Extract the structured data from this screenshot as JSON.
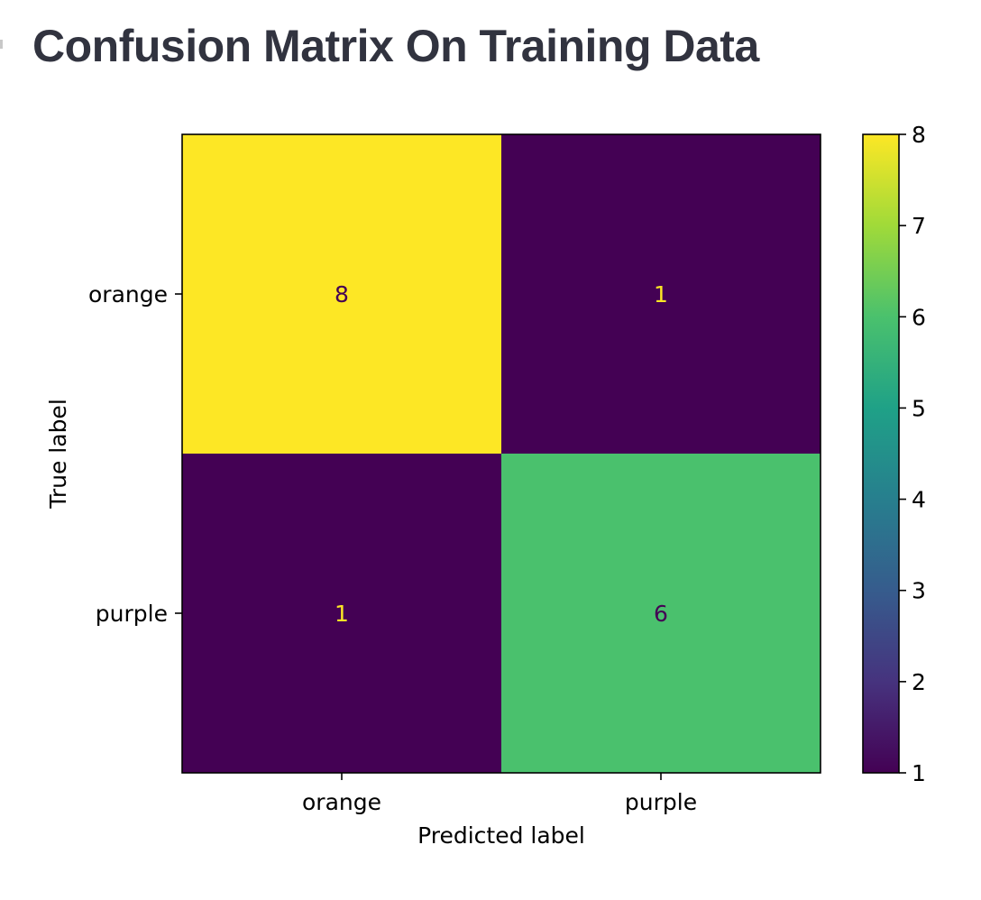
{
  "title": "Confusion Matrix On Training Data",
  "chart_data": {
    "type": "heatmap",
    "title": "Confusion Matrix On Training Data",
    "xlabel": "Predicted label",
    "ylabel": "True label",
    "x_categories": [
      "orange",
      "purple"
    ],
    "y_categories": [
      "orange",
      "purple"
    ],
    "values": [
      [
        8,
        1
      ],
      [
        1,
        6
      ]
    ],
    "colormap": "viridis",
    "colors": {
      "low": "#440154",
      "high": "#fde725",
      "text_on_dark": "#fde725",
      "text_on_light": "#440154"
    },
    "colorbar": {
      "min": 1,
      "max": 8,
      "ticks": [
        1,
        2,
        3,
        4,
        5,
        6,
        7,
        8
      ]
    },
    "grid": false
  }
}
